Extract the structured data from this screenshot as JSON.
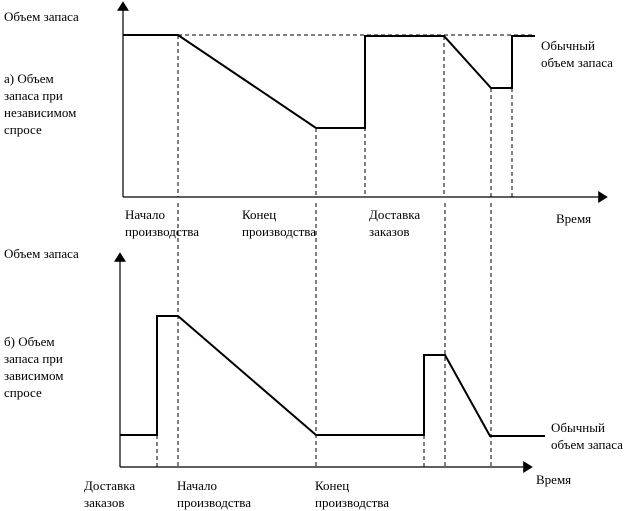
{
  "top_chart": {
    "ylabel": "Объем запаса",
    "side_label": "а) Объем\nзапаса при\nнезависимом\nспросе",
    "xlabel": "Время",
    "normal_label": "Обычный\nобъем запаса",
    "events": [
      "Начало\nпроизводства",
      "Конец\nпроизводства",
      "Доставка\nзаказов"
    ]
  },
  "bottom_chart": {
    "ylabel": "Объем запаса",
    "side_label": "б) Объем\nзапаса при\nзависимом\nспросе",
    "xlabel": "Время",
    "normal_label": "Обычный\nобъем запаса",
    "events": [
      "Доставка\nзаказов",
      "Начало\nпроизводства",
      "Конец\nпроизводства"
    ]
  }
}
